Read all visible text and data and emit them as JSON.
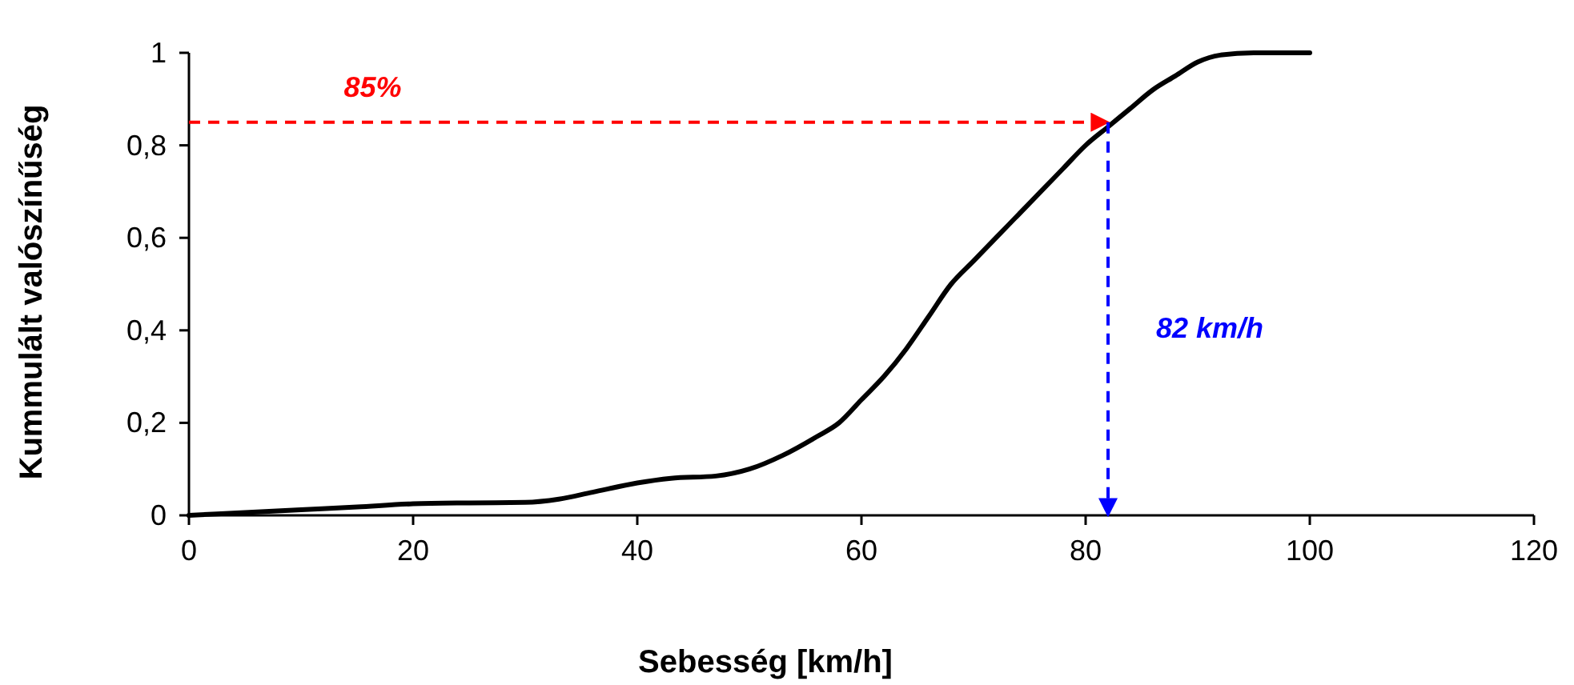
{
  "chart_data": {
    "type": "line",
    "xlabel": "Sebesség [km/h]",
    "ylabel": "Kummulált valószínűség",
    "x": [
      0,
      5,
      10,
      15,
      20,
      25,
      30,
      33,
      36,
      40,
      43,
      47,
      50,
      53,
      56,
      58,
      60,
      62,
      64,
      66,
      68,
      70,
      72,
      74,
      76,
      78,
      80,
      82,
      84,
      86,
      88,
      90,
      92,
      95,
      100
    ],
    "series": [
      {
        "color": "#000000",
        "values": [
          0,
          0.006,
          0.012,
          0.018,
          0.025,
          0.027,
          0.028,
          0.035,
          0.05,
          0.07,
          0.08,
          0.085,
          0.1,
          0.13,
          0.17,
          0.2,
          0.25,
          0.3,
          0.36,
          0.43,
          0.5,
          0.55,
          0.6,
          0.65,
          0.7,
          0.75,
          0.8,
          0.84,
          0.88,
          0.92,
          0.95,
          0.98,
          0.995,
          1,
          1
        ]
      }
    ],
    "xlim": [
      0,
      120
    ],
    "xticks": [
      0,
      20,
      40,
      60,
      80,
      100,
      120
    ],
    "ylim": [
      0,
      1
    ],
    "yticks": [
      0,
      {
        "value": 0.2,
        "label": "0,2"
      },
      {
        "value": 0.4,
        "label": "0,4"
      },
      {
        "value": 0.6,
        "label": "0,6"
      },
      {
        "value": 0.8,
        "label": "0,8"
      },
      1
    ],
    "grid": false,
    "marker": "none",
    "line_style": "solid",
    "ref_lines": [
      {
        "axis": "y",
        "value": 0.85,
        "label": "85%",
        "color": "#ff0000",
        "line_style": "dashed"
      },
      {
        "axis": "x",
        "value": 82,
        "label": "82 km/h",
        "color": "#0000ff",
        "line_style": "dashed"
      }
    ]
  }
}
